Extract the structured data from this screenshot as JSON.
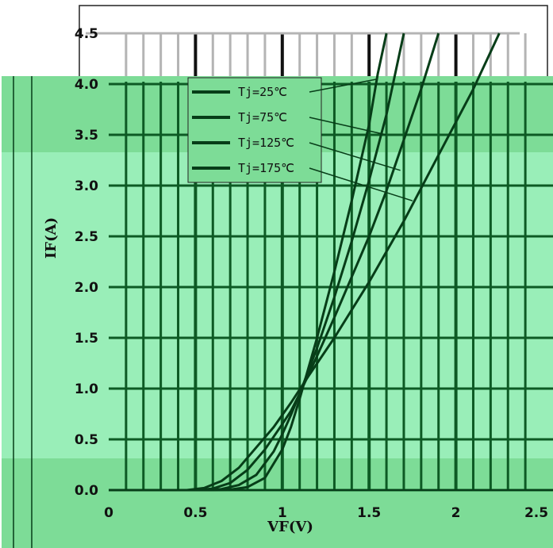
{
  "chart_data": {
    "type": "line",
    "xlabel": "VF(V)",
    "ylabel": "IF(A)",
    "xlim": [
      0,
      2.5
    ],
    "ylim": [
      0,
      4.5
    ],
    "x_ticks": [
      "0",
      "0.5",
      "1",
      "1.5",
      "2",
      "2.5"
    ],
    "y_ticks": [
      "0.0",
      "0.5",
      "1.0",
      "1.5",
      "2.0",
      "2.5",
      "3.0",
      "3.5",
      "4.0",
      "4.5"
    ],
    "grid": true,
    "legend_position": "top-left",
    "series": [
      {
        "name": "Tj=25℃",
        "x": [
          0.6,
          0.7,
          0.8,
          0.9,
          1.0,
          1.05,
          1.1,
          1.2,
          1.3,
          1.4,
          1.5,
          1.55,
          1.6
        ],
        "y": [
          0,
          0.005,
          0.03,
          0.12,
          0.4,
          0.62,
          0.9,
          1.5,
          2.15,
          2.85,
          3.6,
          4.1,
          4.5
        ]
      },
      {
        "name": "Tj=75℃",
        "x": [
          0.55,
          0.65,
          0.75,
          0.85,
          0.95,
          1.0,
          1.05,
          1.1,
          1.2,
          1.3,
          1.4,
          1.5,
          1.6,
          1.7
        ],
        "y": [
          0,
          0.01,
          0.05,
          0.15,
          0.38,
          0.55,
          0.74,
          0.95,
          1.4,
          1.9,
          2.45,
          3.05,
          3.7,
          4.5
        ]
      },
      {
        "name": "Tj=125℃",
        "x": [
          0.5,
          0.6,
          0.7,
          0.8,
          0.9,
          1.0,
          1.05,
          1.1,
          1.2,
          1.3,
          1.4,
          1.5,
          1.6,
          1.7,
          1.8,
          1.9
        ],
        "y": [
          0,
          0.015,
          0.07,
          0.2,
          0.4,
          0.65,
          0.78,
          0.95,
          1.32,
          1.7,
          2.1,
          2.5,
          2.95,
          3.45,
          3.95,
          4.5
        ]
      },
      {
        "name": "Tj=175℃",
        "x": [
          0.45,
          0.55,
          0.65,
          0.75,
          0.85,
          0.95,
          1.05,
          1.15,
          1.3,
          1.5,
          1.7,
          1.9,
          2.1,
          2.25
        ],
        "y": [
          0,
          0.02,
          0.09,
          0.22,
          0.42,
          0.62,
          0.86,
          1.12,
          1.5,
          2.05,
          2.65,
          3.3,
          3.95,
          4.5
        ]
      }
    ],
    "colors": {
      "background": "#ffffff",
      "plot_band_dark": "#7ddc97",
      "plot_band_light": "#99eeb8",
      "gridline": "#0d5a24",
      "curve": "#073d18",
      "top_gridline": "#b4b4b4",
      "frame": "#222222"
    }
  }
}
